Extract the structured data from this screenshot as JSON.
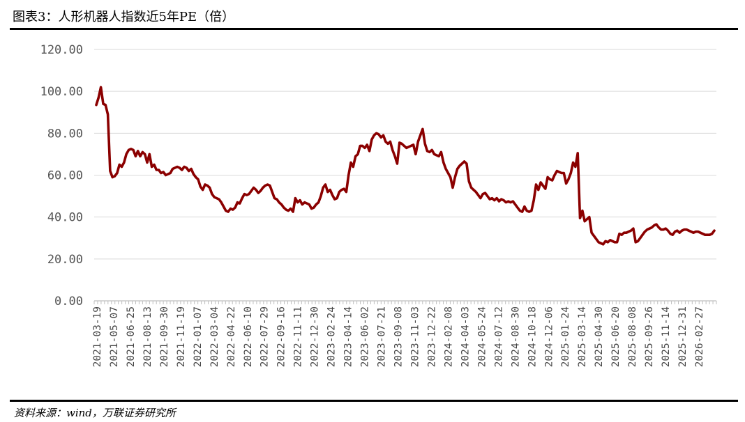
{
  "title": "图表3：人形机器人指数近5年PE（倍）",
  "source": "资料来源：wind，万联证券研究所",
  "colors": {
    "line": "#8B0000",
    "grid": "#d9d9d9",
    "axis": "#bfbfbf"
  },
  "chart_data": {
    "type": "line",
    "title": "图表3：人形机器人指数近5年PE（倍）",
    "xlabel": "",
    "ylabel": "",
    "ylim": [
      0,
      120
    ],
    "yticks": [
      "0.00",
      "20.00",
      "40.00",
      "60.00",
      "80.00",
      "100.00",
      "120.00"
    ],
    "grid": true,
    "legend": "none",
    "x_tick_labels": [
      "2021-03-19",
      "2021-05-07",
      "2021-06-25",
      "2021-08-13",
      "2021-09-30",
      "2021-11-19",
      "2022-01-07",
      "2022-03-04",
      "2022-04-22",
      "2022-06-10",
      "2022-07-29",
      "2022-09-16",
      "2022-11-11",
      "2022-12-30",
      "2023-02-24",
      "2023-04-14",
      "2023-06-02",
      "2023-07-21",
      "2023-09-08",
      "2023-11-03",
      "2023-12-22",
      "2024-02-08",
      "2024-04-03",
      "2024-05-24",
      "2024-07-12",
      "2024-08-30",
      "2024-10-18",
      "2024-12-06",
      "2025-01-24",
      "2025-03-14",
      "2025-04-30",
      "2025-06-20",
      "2025-08-08",
      "2025-09-26",
      "2025-11-14",
      "2025-12-31",
      "2026-02-27"
    ],
    "series": [
      {
        "name": "",
        "values": [
          93.5,
          97,
          102,
          94,
          93.5,
          89,
          62,
          59,
          59.5,
          61,
          65,
          64,
          66,
          70,
          72,
          72.5,
          72,
          69,
          71.5,
          69,
          71,
          70,
          66,
          70,
          64,
          65,
          62.5,
          62.5,
          61,
          61.5,
          60,
          60.5,
          61,
          63,
          63.5,
          64,
          63.5,
          62.5,
          64,
          63.5,
          62,
          63,
          60.5,
          59,
          58,
          54.5,
          53,
          55.5,
          55,
          54,
          51,
          49.5,
          49,
          48.5,
          47,
          45,
          43,
          42.5,
          44,
          43.5,
          44.5,
          47,
          46.5,
          49,
          51,
          50.5,
          51,
          52.5,
          54,
          53,
          51.5,
          52.5,
          54,
          55,
          55.5,
          55,
          52,
          49,
          48.5,
          47,
          46,
          44.5,
          43.5,
          43,
          44,
          42.5,
          49,
          47,
          48,
          46,
          47,
          46.5,
          46,
          44,
          44.5,
          46,
          47,
          50,
          54,
          55.5,
          52,
          53,
          50.5,
          48.5,
          49,
          52,
          53,
          53.5,
          52,
          60,
          66,
          64,
          69,
          70,
          74,
          74,
          73,
          74.5,
          71.5,
          77,
          79,
          80,
          79.5,
          78,
          79,
          76,
          75,
          76,
          72,
          69,
          65.5,
          75.5,
          75,
          74,
          73,
          73.5,
          74,
          74.5,
          70,
          76,
          79,
          82,
          75,
          71.5,
          71,
          72,
          70,
          69.5,
          69,
          71,
          66,
          63,
          61,
          59,
          54,
          59,
          63,
          64.5,
          65.5,
          66.5,
          65.5,
          57,
          54,
          53,
          52,
          50.5,
          49,
          51,
          51.5,
          50,
          48.5,
          49,
          48,
          49,
          47.5,
          48.5,
          48,
          47,
          47.5,
          47,
          47.5,
          46,
          44.5,
          43,
          42.5,
          45,
          43,
          42.5,
          43,
          48,
          55.5,
          53,
          56.5,
          55,
          53.5,
          59,
          58,
          57.5,
          60,
          62,
          61.5,
          61,
          61,
          56,
          58,
          61,
          66,
          64,
          70.5,
          39.5,
          43,
          38,
          39,
          40,
          32.5,
          31,
          29.5,
          28,
          27.5,
          27,
          28.5,
          28,
          29,
          28.5,
          28,
          28,
          32,
          31.5,
          32.5,
          32.5,
          33,
          33.5,
          34.5,
          28,
          28.5,
          30,
          31.5,
          33,
          34,
          34.5,
          35,
          36,
          36.5,
          35,
          34,
          34,
          34.5,
          33.5,
          32,
          31.5,
          33,
          33.5,
          32.5,
          33.5,
          34,
          34,
          33.5,
          33,
          32.5,
          33,
          33,
          32.5,
          32,
          31.5,
          31.5,
          31.5,
          32,
          33.5
        ]
      }
    ]
  }
}
